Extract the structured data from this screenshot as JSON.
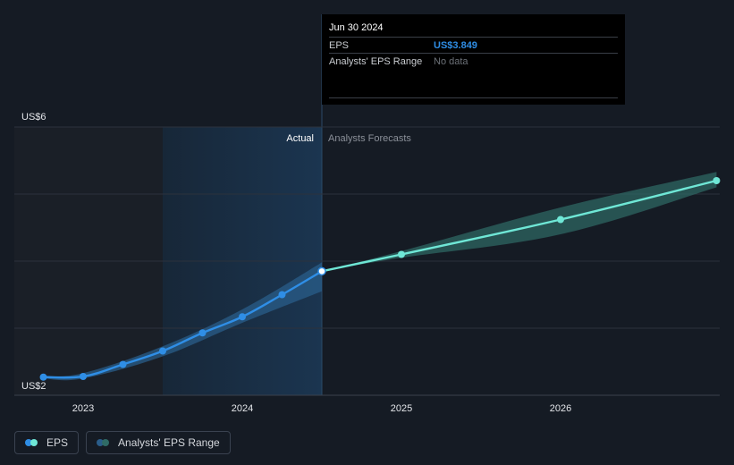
{
  "tooltip": {
    "date": "Jun 30 2024",
    "rows": [
      {
        "label": "EPS",
        "value": "US$3.849"
      },
      {
        "label": "Analysts' EPS Range",
        "value": "No data"
      }
    ]
  },
  "regions": {
    "actual_label": "Actual",
    "forecast_label": "Analysts Forecasts"
  },
  "legend": {
    "eps_label": "EPS",
    "range_label": "Analysts' EPS Range"
  },
  "colors": {
    "background": "#151b24",
    "actual_line": "#2f8ee6",
    "forecast_line": "#6fe7d6",
    "actual_band": "#2a5d8a",
    "forecast_band": "#2f6b66",
    "grid": "#2c323c"
  },
  "chart_data": {
    "type": "line",
    "title": "",
    "xlabel": "",
    "ylabel": "",
    "ylim": [
      2,
      6
    ],
    "xlim": [
      2022.6,
      2026.98
    ],
    "y_tick_labels": [
      {
        "value": 6,
        "label": "US$6"
      },
      {
        "value": 2,
        "label": "US$2"
      }
    ],
    "y_gridlines": [
      6,
      5,
      4,
      3,
      2
    ],
    "x_tick_labels": [
      {
        "value": 2023,
        "label": "2023"
      },
      {
        "value": 2024,
        "label": "2024"
      },
      {
        "value": 2025,
        "label": "2025"
      },
      {
        "value": 2026,
        "label": "2026"
      }
    ],
    "shaded_past_region": [
      2022.6,
      2023.5
    ],
    "highlight_region": [
      2023.5,
      2024.5
    ],
    "divider_x": 2024.5,
    "series": [
      {
        "name": "EPS",
        "kind": "actual",
        "x": [
          2022.75,
          2023.0,
          2023.25,
          2023.5,
          2023.75,
          2024.0,
          2024.25,
          2024.5
        ],
        "y": [
          2.27,
          2.28,
          2.46,
          2.66,
          2.93,
          3.17,
          3.5,
          3.849
        ]
      },
      {
        "name": "EPS",
        "kind": "forecast",
        "x": [
          2024.5,
          2025.0,
          2026.0,
          2026.98
        ],
        "y": [
          3.849,
          4.1,
          4.62,
          5.2
        ]
      }
    ],
    "range_bands": [
      {
        "name": "Analysts' EPS Range",
        "kind": "actual",
        "x": [
          2022.75,
          2023.0,
          2023.5,
          2024.0,
          2024.5
        ],
        "low": [
          2.25,
          2.25,
          2.58,
          3.08,
          3.55
        ],
        "high": [
          2.29,
          2.33,
          2.73,
          3.28,
          3.98
        ]
      },
      {
        "name": "Analysts' EPS Range",
        "kind": "forecast",
        "x": [
          2024.5,
          2025.0,
          2026.0,
          2026.98
        ],
        "low": [
          3.849,
          4.05,
          4.4,
          5.1
        ],
        "high": [
          3.849,
          4.15,
          4.8,
          5.33
        ]
      }
    ],
    "highlighted_point": {
      "x": 2024.5,
      "y": 3.849
    }
  }
}
